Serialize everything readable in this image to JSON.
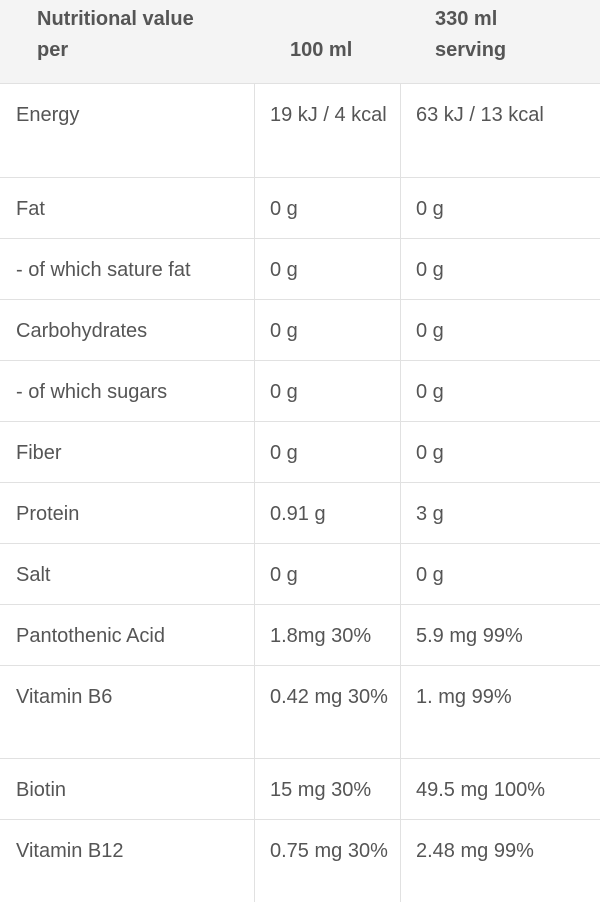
{
  "header": {
    "col1_line1": "Nutritional value",
    "col1_line2": "per",
    "col2": "100 ml",
    "col3_line1": "330 ml",
    "col3_line2": "serving"
  },
  "rows": [
    {
      "name": "Energy",
      "per100": "19 kJ / 4 kcal",
      "serving": "63 kJ / 13 kcal"
    },
    {
      "name": "Fat",
      "per100": "0 g",
      "serving": "0 g"
    },
    {
      "name": "- of which sature fat",
      "per100": "0 g",
      "serving": "0 g"
    },
    {
      "name": "Carbohydrates",
      "per100": "0 g",
      "serving": "0 g"
    },
    {
      "name": "- of which sugars",
      "per100": "0 g",
      "serving": "0 g"
    },
    {
      "name": "Fiber",
      "per100": "0 g",
      "serving": "0 g"
    },
    {
      "name": "Protein",
      "per100": "0.91 g",
      "serving": "3 g"
    },
    {
      "name": "Salt",
      "per100": "0 g",
      "serving": "0 g"
    },
    {
      "name": "Pantothenic Acid",
      "per100": "1.8mg 30%",
      "serving": "5.9 mg 99%"
    },
    {
      "name": "Vitamin B6",
      "per100": "0.42 mg 30%",
      "serving": "1. mg 99%"
    },
    {
      "name": "Biotin",
      "per100": "15 mg 30%",
      "serving": "49.5 mg 100%"
    },
    {
      "name": "Vitamin B12",
      "per100": "0.75 mg 30%",
      "serving": "2.48 mg 99%"
    }
  ]
}
